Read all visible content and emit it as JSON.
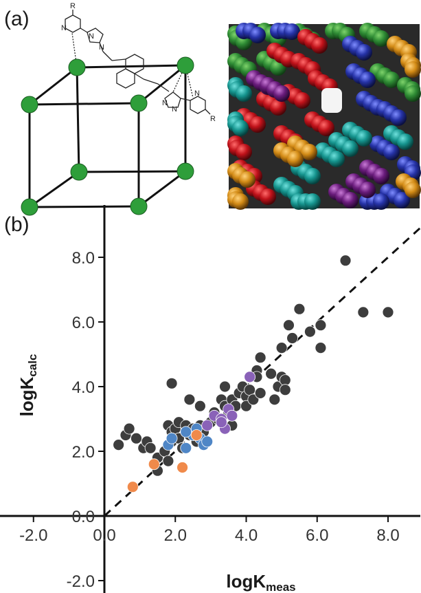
{
  "panel_a_label": "(a)",
  "panel_b_label": "(b)",
  "structure_labels": {
    "r_top": "R",
    "r_bottom": "R",
    "n_labels": [
      "N",
      "N",
      "N",
      "N",
      "N",
      "N"
    ]
  },
  "colors": {
    "vertex": "#2e9e3a",
    "black": "#3d3d3d",
    "blue": "#4f86c6",
    "purple": "#8a62b8",
    "orange": "#f08a4b"
  },
  "chart_data": {
    "type": "scatter",
    "xlabel": "logK",
    "xlabel_sub": "meas",
    "ylabel": "logK",
    "ylabel_sub": "calc",
    "xlim": [
      -2.2,
      9.2
    ],
    "ylim": [
      -2.3,
      9.3
    ],
    "x_ticks": [
      -2.0,
      0.0,
      2.0,
      4.0,
      6.0,
      8.0
    ],
    "x_tick_labels": [
      "-2.0",
      "0.0",
      "2.0",
      "4.0",
      "6.0",
      "8.0"
    ],
    "y_ticks": [
      -2.0,
      0.0,
      2.0,
      4.0,
      6.0,
      8.0
    ],
    "y_tick_labels": [
      "-2.0",
      "0.0",
      "2.0",
      "4.0",
      "6.0",
      "8.0"
    ],
    "fit_line": {
      "style": "dashed",
      "x": [
        0,
        9.2
      ],
      "y": [
        0,
        9.2
      ]
    },
    "series": [
      {
        "color": "#3d3d3d",
        "x": [
          0.4,
          0.6,
          0.7,
          0.9,
          1.1,
          1.2,
          1.3,
          1.5,
          1.5,
          1.7,
          1.8,
          1.8,
          1.9,
          1.9,
          2.0,
          2.1,
          2.1,
          2.2,
          2.3,
          2.4,
          2.5,
          2.6,
          2.7,
          2.7,
          2.8,
          3.0,
          3.1,
          3.2,
          3.3,
          3.4,
          3.5,
          3.6,
          3.6,
          3.7,
          3.8,
          3.9,
          4.0,
          4.0,
          4.1,
          4.2,
          4.3,
          4.4,
          4.4,
          4.7,
          4.8,
          4.9,
          5.0,
          5.0,
          5.1,
          5.1,
          5.2,
          5.3,
          5.5,
          5.8,
          6.1,
          6.1,
          6.8,
          7.3,
          8.0,
          1.9,
          2.4,
          3.4,
          4.3
        ],
        "y": [
          2.2,
          2.5,
          2.7,
          2.4,
          2.1,
          2.3,
          2.1,
          1.4,
          1.8,
          2.0,
          2.8,
          1.7,
          2.6,
          2.3,
          2.7,
          2.9,
          2.4,
          2.1,
          2.8,
          2.5,
          2.7,
          2.3,
          2.8,
          3.4,
          2.6,
          2.9,
          3.2,
          3.0,
          3.6,
          3.4,
          3.2,
          2.8,
          3.6,
          3.4,
          3.8,
          4.0,
          3.7,
          3.4,
          3.9,
          3.6,
          4.5,
          4.9,
          3.8,
          4.4,
          3.6,
          4.0,
          4.3,
          5.2,
          4.2,
          3.9,
          5.9,
          5.5,
          6.4,
          5.7,
          5.9,
          5.2,
          7.9,
          6.3,
          6.3,
          4.1,
          3.6,
          4.0,
          4.3
        ]
      },
      {
        "color": "#4f86c6",
        "x": [
          1.8,
          1.9,
          2.3,
          2.5,
          2.7,
          2.8,
          2.9,
          2.3,
          2.6
        ],
        "y": [
          2.2,
          2.4,
          2.1,
          2.5,
          2.4,
          2.2,
          2.3,
          2.6,
          2.7
        ]
      },
      {
        "color": "#8a62b8",
        "x": [
          2.9,
          3.1,
          3.3,
          3.4,
          3.5,
          3.6,
          3.3,
          4.1
        ],
        "y": [
          2.8,
          3.1,
          3.0,
          2.7,
          3.3,
          3.1,
          2.9,
          4.3
        ]
      },
      {
        "color": "#f08a4b",
        "x": [
          0.8,
          1.4,
          2.2,
          2.6
        ],
        "y": [
          0.9,
          1.6,
          1.5,
          2.5
        ]
      }
    ]
  }
}
